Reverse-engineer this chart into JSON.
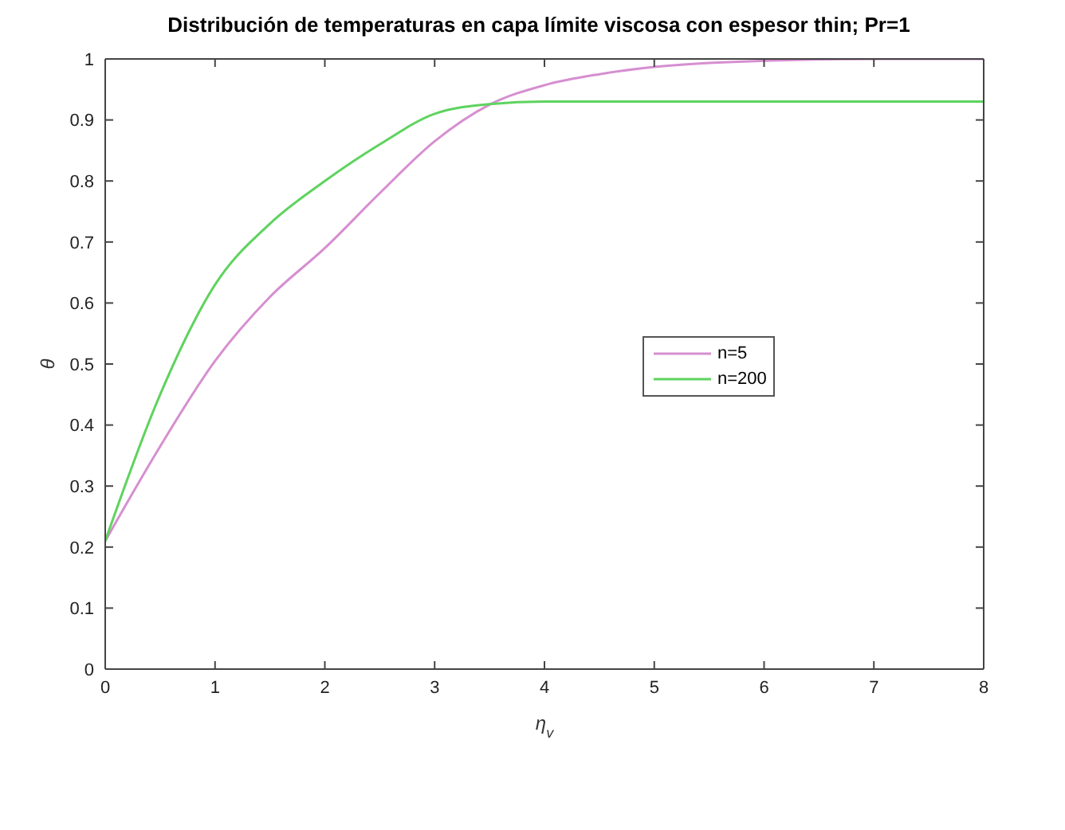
{
  "chart_data": {
    "type": "line",
    "title": "Distribución de temperaturas en capa límite viscosa con espesor thin; Pr=1",
    "xlabel": "η$_{v}$",
    "ylabel": "θ",
    "x": [
      0,
      0.5,
      1,
      1.5,
      2,
      2.5,
      3,
      3.5,
      4,
      4.5,
      5,
      6,
      7,
      8
    ],
    "series": [
      {
        "name": "n=5",
        "color": "#d68fd0",
        "values": [
          0.21,
          0.365,
          0.505,
          0.61,
          0.69,
          0.78,
          0.865,
          0.925,
          0.957,
          0.975,
          0.987,
          0.997,
          1,
          1
        ]
      },
      {
        "name": "n=200",
        "color": "#5ed35e",
        "values": [
          0.21,
          0.45,
          0.63,
          0.73,
          0.8,
          0.86,
          0.91,
          0.926,
          0.93,
          0.93,
          0.93,
          0.93,
          0.93,
          0.93
        ]
      }
    ],
    "xlim": [
      0,
      8
    ],
    "xticks": [
      0,
      1,
      2,
      3,
      4,
      5,
      6,
      7,
      8
    ],
    "ylim": [
      0,
      1
    ],
    "yticks": [
      0,
      0.1,
      0.2,
      0.3,
      0.4,
      0.5,
      0.6,
      0.7,
      0.8,
      0.9,
      1
    ],
    "legend": "right",
    "grid": false,
    "marker": "none",
    "line_style": "solid"
  }
}
